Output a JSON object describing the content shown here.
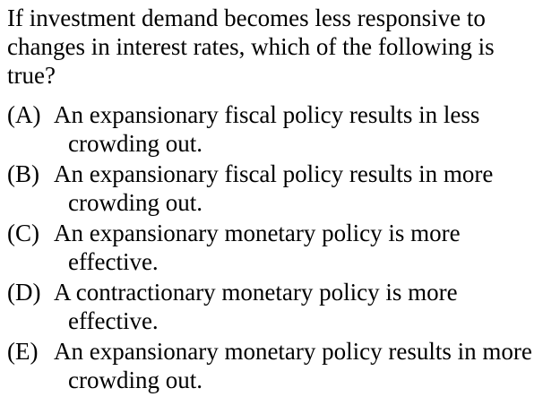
{
  "question": {
    "text": "If investment demand becomes less responsive to changes in interest rates, which of the following is true?"
  },
  "choices": [
    {
      "letter": "(A)",
      "text": "An expansionary fiscal policy results in less crowding out."
    },
    {
      "letter": "(B)",
      "text": "An expansionary fiscal policy results in more crowding out."
    },
    {
      "letter": "(C)",
      "text": "An expansionary monetary policy is more effective."
    },
    {
      "letter": "(D)",
      "text": "A contractionary monetary policy is more effective."
    },
    {
      "letter": "(E)",
      "text": "An expansionary monetary policy results in more crowding out."
    }
  ]
}
